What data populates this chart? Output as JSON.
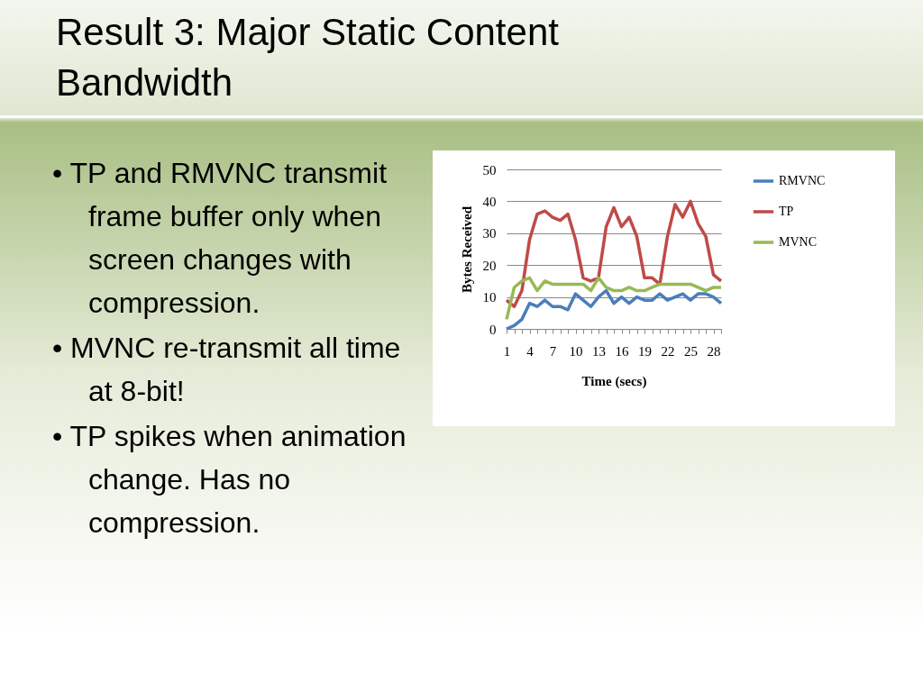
{
  "chart_data": {
    "type": "line",
    "title": "Result 3: Major Static Content Bandwidth",
    "annotations": [
      "• TP and RMVNC transmit frame buffer only when screen changes with compression.",
      "• MVNC re-transmit all time at 8-bit!",
      "• TP spikes when animation change. Has no compression."
    ],
    "xlabel": "Time (secs)",
    "ylabel": "Bytes Received",
    "categories": [
      "1",
      null,
      null,
      "4",
      null,
      null,
      "7",
      null,
      null,
      "10",
      null,
      null,
      "13",
      null,
      null,
      "16",
      null,
      null,
      "19",
      null,
      null,
      "22",
      null,
      null,
      "25",
      null,
      null,
      "28",
      null
    ],
    "series": [
      {
        "name": "RMVNC",
        "color": "#4a7ebb",
        "values": [
          0,
          1,
          3,
          8,
          7,
          9,
          7,
          7,
          6,
          11,
          9,
          7,
          10,
          12,
          8,
          10,
          8,
          10,
          9,
          9,
          11,
          9,
          10,
          11,
          9,
          11,
          11,
          10,
          8
        ]
      },
      {
        "name": "TP",
        "color": "#be4b48",
        "values": [
          9,
          7,
          12,
          28,
          36,
          37,
          35,
          34,
          36,
          28,
          16,
          15,
          16,
          32,
          38,
          32,
          35,
          29,
          16,
          16,
          14,
          29,
          39,
          35,
          40,
          33,
          29,
          17,
          15
        ]
      },
      {
        "name": "MVNC",
        "color": "#98b954",
        "values": [
          3,
          13,
          15,
          16,
          12,
          15,
          14,
          14,
          14,
          14,
          14,
          12,
          16,
          13,
          12,
          12,
          13,
          12,
          12,
          13,
          14,
          14,
          14,
          14,
          14,
          13,
          12,
          13,
          13
        ]
      }
    ],
    "ylim": [
      0,
      50
    ],
    "yticks": [
      0,
      10,
      20,
      30,
      40,
      50
    ],
    "grid": "y",
    "legend": "right",
    "line_style": "solid",
    "marker": "none"
  }
}
